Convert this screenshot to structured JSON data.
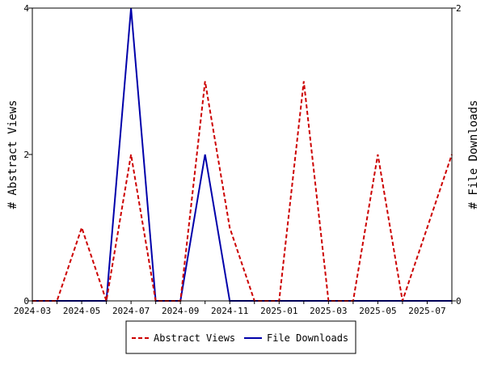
{
  "chart_data": {
    "type": "line",
    "title": "",
    "x": [
      "2024-03",
      "2024-04",
      "2024-05",
      "2024-06",
      "2024-07",
      "2024-08",
      "2024-09",
      "2024-10",
      "2024-11",
      "2024-12",
      "2025-01",
      "2025-02",
      "2025-03",
      "2025-04",
      "2025-05",
      "2025-06",
      "2025-07",
      "2025-08"
    ],
    "x_tick_labels": [
      "2024-03",
      "2024-05",
      "2024-07",
      "2024-09",
      "2024-11",
      "2025-01",
      "2025-03",
      "2025-05",
      "2025-07"
    ],
    "ylabel_left": "# Abstract Views",
    "ylabel_right": "# File Downloads",
    "ylim_left": [
      0,
      4
    ],
    "ylim_right": [
      0,
      2
    ],
    "yticks_left": [
      0,
      2,
      4
    ],
    "yticks_right": [
      0,
      2
    ],
    "grid": false,
    "legend_position": "bottom-center",
    "series": [
      {
        "name": "Abstract Views",
        "axis": "left",
        "color": "#cc0000",
        "style": "dashed",
        "values": [
          0,
          0,
          1,
          0,
          2,
          0,
          0,
          3,
          1,
          0,
          0,
          3,
          0,
          0,
          2,
          0,
          1,
          2
        ]
      },
      {
        "name": "File Downloads",
        "axis": "right",
        "color": "#0000aa",
        "style": "solid",
        "values": [
          0,
          0,
          0,
          0,
          2,
          0,
          0,
          1,
          0,
          0,
          0,
          0,
          0,
          0,
          0,
          0,
          0,
          0
        ]
      }
    ]
  }
}
